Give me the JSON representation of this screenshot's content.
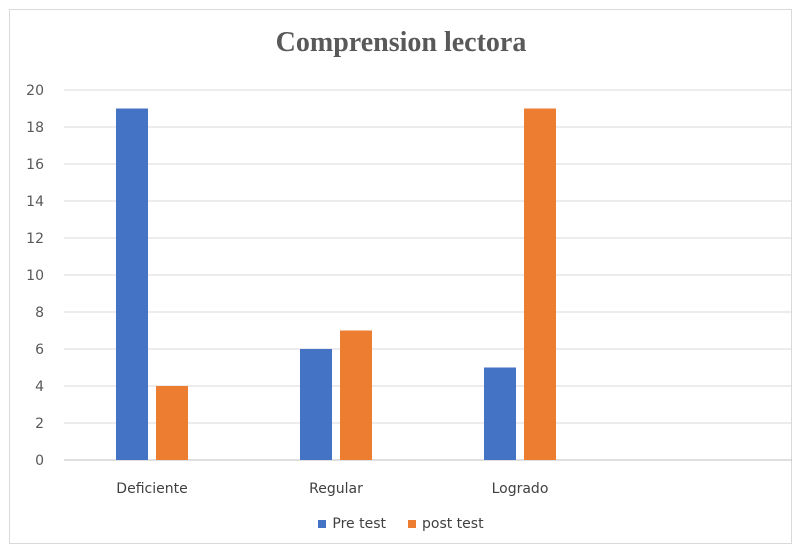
{
  "chart_data": {
    "type": "bar",
    "title": "Comprension lectora",
    "categories": [
      "Deficiente",
      "Regular",
      "Logrado"
    ],
    "series": [
      {
        "name": "Pre test",
        "values": [
          19,
          6,
          5
        ],
        "color": "#4472C4"
      },
      {
        "name": "post test",
        "values": [
          4,
          7,
          19
        ],
        "color": "#ED7D31"
      }
    ],
    "ylim": [
      0,
      20
    ],
    "yticks": [
      0,
      2,
      4,
      6,
      8,
      10,
      12,
      14,
      16,
      18,
      20
    ],
    "grid": true,
    "legend_position": "bottom",
    "xlabel": "",
    "ylabel": ""
  }
}
